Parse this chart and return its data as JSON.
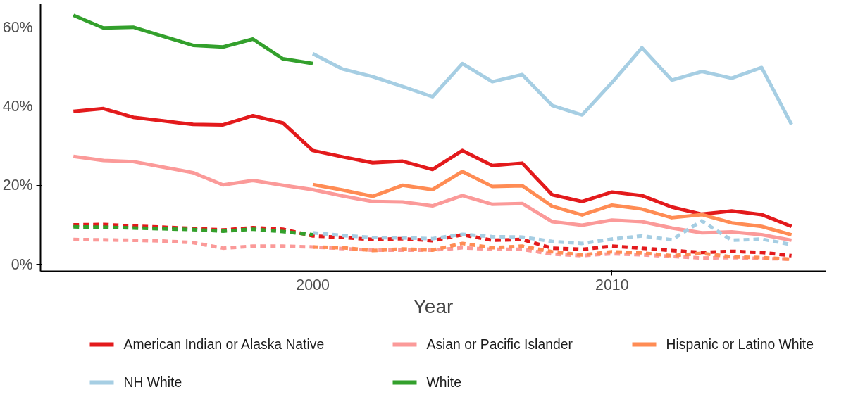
{
  "chart_data": {
    "type": "line",
    "xlabel": "Year",
    "xlim": [
      1990.9,
      2017.15
    ],
    "ylim": [
      -1.75,
      65.9
    ],
    "xticks": [
      2000,
      2010
    ],
    "yticks": [
      {
        "value": 0,
        "label": "0%"
      },
      {
        "value": 20,
        "label": "20%"
      },
      {
        "value": 40,
        "label": "40%"
      },
      {
        "value": 60,
        "label": "60%"
      }
    ],
    "grid": false,
    "legend": "bottom",
    "line_style": "solid",
    "series": [
      {
        "name": "American Indian or Alaska Native",
        "color": "#e31a1c",
        "x": [
          1992,
          1993,
          1994,
          1995,
          1996,
          1997,
          1998,
          1999,
          2000,
          2001,
          2002,
          2003,
          2004,
          2005,
          2006,
          2007,
          2008,
          2009,
          2010,
          2011,
          2012,
          2013,
          2014,
          2015,
          2016
        ],
        "values": [
          38.7,
          39.4,
          37.2,
          36.3,
          35.4,
          35.3,
          37.6,
          35.8,
          28.8,
          27.2,
          25.7,
          26.1,
          24,
          28.8,
          25,
          25.6,
          17.6,
          15.9,
          18.3,
          17.4,
          14.5,
          12.7,
          13.5,
          12.6,
          9.6
        ]
      },
      {
        "name": "Asian or Pacific Islander",
        "color": "#fb9a99",
        "x": [
          1992,
          1993,
          1994,
          1995,
          1996,
          1997,
          1998,
          1999,
          2000,
          2001,
          2002,
          2003,
          2004,
          2005,
          2006,
          2007,
          2008,
          2009,
          2010,
          2011,
          2012,
          2013,
          2014,
          2015,
          2016
        ],
        "values": [
          27.3,
          26.3,
          26,
          24.6,
          23.2,
          20.1,
          21.2,
          20,
          18.9,
          17.3,
          15.9,
          15.8,
          14.8,
          17.4,
          15.2,
          15.4,
          10.8,
          9.9,
          11.2,
          10.8,
          9.2,
          8,
          8.2,
          7.5,
          6.1
        ]
      },
      {
        "name": "Hispanic or Latino White",
        "color": "#ff8c54",
        "x": [
          2000,
          2001,
          2002,
          2003,
          2004,
          2005,
          2006,
          2007,
          2008,
          2009,
          2010,
          2011,
          2012,
          2013,
          2014,
          2015,
          2016
        ],
        "values": [
          20.2,
          18.8,
          17.2,
          20,
          18.9,
          23.5,
          19.7,
          19.9,
          14.7,
          12.5,
          15,
          14,
          11.8,
          12.6,
          10.5,
          9.6,
          7.5
        ]
      },
      {
        "name": "NH White",
        "color": "#a6cee3",
        "x": [
          2000,
          2001,
          2002,
          2003,
          2004,
          2005,
          2006,
          2007,
          2008,
          2009,
          2010,
          2011,
          2012,
          2013,
          2014,
          2015,
          2016
        ],
        "values": [
          53.3,
          49.4,
          47.5,
          45,
          42.4,
          50.8,
          46.2,
          48,
          40.2,
          37.8,
          46,
          54.8,
          46.6,
          48.8,
          47.1,
          49.8,
          35.4
        ]
      },
      {
        "name": "White",
        "color": "#33a02c",
        "x": [
          1992,
          1993,
          1994,
          1995,
          1996,
          1997,
          1998,
          1999,
          2000
        ],
        "values": [
          63,
          59.8,
          60,
          57.7,
          55.4,
          55,
          57,
          52,
          50.8
        ]
      },
      {
        "color": "#e31a1c",
        "line_style": "dashed",
        "x": [
          1992,
          1993,
          1994,
          1995,
          1996,
          1997,
          1998,
          1999,
          2000,
          2001,
          2002,
          2003,
          2004,
          2005,
          2006,
          2007,
          2008,
          2009,
          2010,
          2011,
          2012,
          2013,
          2014,
          2015,
          2016
        ],
        "values": [
          10,
          10.1,
          9.7,
          9.4,
          9.1,
          8.7,
          9.3,
          8.9,
          7.2,
          6.8,
          6.3,
          6.5,
          6,
          7.5,
          6.1,
          6.3,
          4.1,
          3.8,
          4.6,
          4.1,
          3.5,
          3,
          3.3,
          3,
          2.2
        ]
      },
      {
        "color": "#fb9a99",
        "line_style": "dashed",
        "x": [
          1992,
          1993,
          1994,
          1995,
          1996,
          1997,
          1998,
          1999,
          2000,
          2001,
          2002,
          2003,
          2004,
          2005,
          2006,
          2007,
          2008,
          2009,
          2010,
          2011,
          2012,
          2013,
          2014,
          2015,
          2016
        ],
        "values": [
          6.3,
          6.2,
          6.1,
          5.9,
          5.5,
          4.1,
          4.6,
          4.6,
          4.4,
          4,
          3.6,
          3.6,
          3.6,
          4.2,
          3.8,
          3.8,
          2.6,
          2.2,
          2.7,
          2.4,
          2,
          1.6,
          1.7,
          1.5,
          1.3
        ]
      },
      {
        "color": "#ff8c54",
        "line_style": "dashed",
        "x": [
          2000,
          2001,
          2002,
          2003,
          2004,
          2005,
          2006,
          2007,
          2008,
          2009,
          2010,
          2011,
          2012,
          2013,
          2014,
          2015,
          2016
        ],
        "values": [
          4.4,
          4.2,
          3.5,
          3.9,
          3.6,
          5.3,
          4.2,
          4.6,
          3.2,
          2.4,
          3.2,
          2.9,
          2.2,
          2.8,
          1.9,
          1.7,
          1.3
        ]
      },
      {
        "color": "#a6cee3",
        "line_style": "dashed",
        "x": [
          2000,
          2001,
          2002,
          2003,
          2004,
          2005,
          2006,
          2007,
          2008,
          2009,
          2010,
          2011,
          2012,
          2013,
          2014,
          2015,
          2016
        ],
        "values": [
          8,
          7.3,
          6.8,
          6.7,
          6.5,
          7.6,
          7,
          6.9,
          5.8,
          5.3,
          6.4,
          7.2,
          6.2,
          11,
          6.1,
          6.4,
          5
        ]
      },
      {
        "color": "#33a02c",
        "line_style": "dashed",
        "x": [
          1992,
          1993,
          1994,
          1995,
          1996,
          1997,
          1998,
          1999,
          2000
        ],
        "values": [
          9.5,
          9.4,
          9.2,
          9,
          8.8,
          8.4,
          8.9,
          8.3,
          7.5
        ]
      }
    ]
  }
}
